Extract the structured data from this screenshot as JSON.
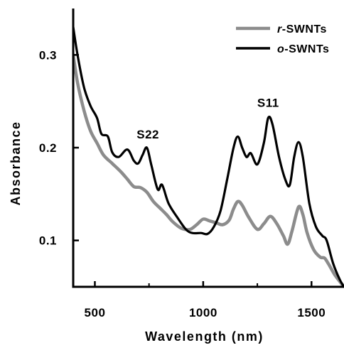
{
  "chart_data": {
    "type": "line",
    "title": "",
    "xlabel": "Wavelength (nm)",
    "ylabel": "Absorbance",
    "xlim": [
      400,
      1650
    ],
    "ylim": [
      0.05,
      0.35
    ],
    "xticks": [
      {
        "value": 500,
        "label": "500"
      },
      {
        "value": 1000,
        "label": "1000"
      },
      {
        "value": 1500,
        "label": "1500"
      }
    ],
    "yticks": [
      {
        "value": 0.1,
        "label": "0.1"
      },
      {
        "value": 0.2,
        "label": "0.2"
      },
      {
        "value": 0.3,
        "label": "0.3"
      }
    ],
    "grid": false,
    "legend_position": "top-right",
    "series": [
      {
        "name": "r-SWNTs",
        "name_prefix": "r",
        "name_suffix": "-SWNTs",
        "color": "#8c8c8c",
        "points": [
          [
            400,
            0.3
          ],
          [
            420,
            0.27
          ],
          [
            450,
            0.24
          ],
          [
            480,
            0.218
          ],
          [
            510,
            0.205
          ],
          [
            540,
            0.192
          ],
          [
            580,
            0.183
          ],
          [
            620,
            0.174
          ],
          [
            650,
            0.166
          ],
          [
            680,
            0.158
          ],
          [
            710,
            0.157
          ],
          [
            740,
            0.152
          ],
          [
            770,
            0.142
          ],
          [
            800,
            0.135
          ],
          [
            830,
            0.128
          ],
          [
            860,
            0.12
          ],
          [
            900,
            0.113
          ],
          [
            940,
            0.112
          ],
          [
            970,
            0.117
          ],
          [
            1000,
            0.123
          ],
          [
            1030,
            0.121
          ],
          [
            1060,
            0.119
          ],
          [
            1090,
            0.117
          ],
          [
            1120,
            0.122
          ],
          [
            1140,
            0.134
          ],
          [
            1160,
            0.142
          ],
          [
            1180,
            0.138
          ],
          [
            1210,
            0.125
          ],
          [
            1250,
            0.112
          ],
          [
            1280,
            0.118
          ],
          [
            1310,
            0.126
          ],
          [
            1340,
            0.118
          ],
          [
            1370,
            0.105
          ],
          [
            1390,
            0.096
          ],
          [
            1410,
            0.11
          ],
          [
            1440,
            0.136
          ],
          [
            1460,
            0.128
          ],
          [
            1480,
            0.108
          ],
          [
            1510,
            0.09
          ],
          [
            1540,
            0.082
          ],
          [
            1560,
            0.081
          ],
          [
            1580,
            0.074
          ],
          [
            1610,
            0.062
          ],
          [
            1650,
            0.05
          ]
        ]
      },
      {
        "name": "o-SWNTs",
        "name_prefix": "o",
        "name_suffix": "-SWNTs",
        "color": "#000000",
        "points": [
          [
            400,
            0.33
          ],
          [
            420,
            0.3
          ],
          [
            450,
            0.265
          ],
          [
            480,
            0.245
          ],
          [
            510,
            0.232
          ],
          [
            530,
            0.215
          ],
          [
            560,
            0.212
          ],
          [
            580,
            0.195
          ],
          [
            610,
            0.19
          ],
          [
            650,
            0.198
          ],
          [
            680,
            0.186
          ],
          [
            700,
            0.183
          ],
          [
            720,
            0.192
          ],
          [
            740,
            0.2
          ],
          [
            760,
            0.182
          ],
          [
            790,
            0.155
          ],
          [
            810,
            0.16
          ],
          [
            840,
            0.14
          ],
          [
            880,
            0.125
          ],
          [
            920,
            0.112
          ],
          [
            950,
            0.108
          ],
          [
            990,
            0.108
          ],
          [
            1020,
            0.107
          ],
          [
            1050,
            0.115
          ],
          [
            1080,
            0.132
          ],
          [
            1110,
            0.165
          ],
          [
            1140,
            0.2
          ],
          [
            1160,
            0.212
          ],
          [
            1180,
            0.2
          ],
          [
            1200,
            0.19
          ],
          [
            1220,
            0.194
          ],
          [
            1250,
            0.182
          ],
          [
            1280,
            0.205
          ],
          [
            1300,
            0.232
          ],
          [
            1320,
            0.225
          ],
          [
            1350,
            0.19
          ],
          [
            1380,
            0.165
          ],
          [
            1400,
            0.16
          ],
          [
            1420,
            0.19
          ],
          [
            1440,
            0.206
          ],
          [
            1460,
            0.19
          ],
          [
            1490,
            0.14
          ],
          [
            1520,
            0.115
          ],
          [
            1550,
            0.105
          ],
          [
            1570,
            0.1
          ],
          [
            1600,
            0.075
          ],
          [
            1630,
            0.058
          ],
          [
            1650,
            0.05
          ]
        ]
      }
    ],
    "annotations": [
      {
        "text": "S22",
        "x": 745,
        "y": 0.21
      },
      {
        "text": "S11",
        "x": 1300,
        "y": 0.244
      }
    ]
  }
}
